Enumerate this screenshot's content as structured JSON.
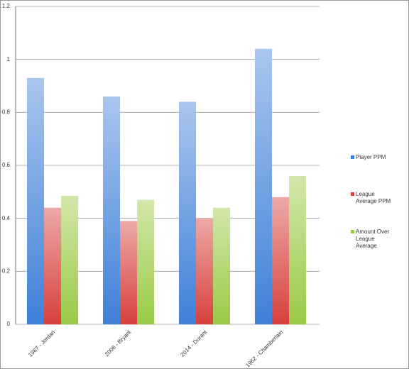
{
  "chart_data": {
    "type": "bar",
    "categories": [
      "1987 - Jordan",
      "2006 - Bryant",
      "2014 - Durant",
      "1962 - Chamberlain"
    ],
    "series": [
      {
        "name": "Player PPM",
        "color": "#3f80d8",
        "values": [
          0.93,
          0.86,
          0.84,
          1.04
        ]
      },
      {
        "name": "League Average PPM",
        "color": "#d7403c",
        "values": [
          0.44,
          0.39,
          0.4,
          0.48
        ]
      },
      {
        "name": "Amount Over League Average",
        "color": "#9ac945",
        "values": [
          0.485,
          0.47,
          0.44,
          0.56
        ]
      }
    ],
    "ylim": [
      0,
      1.2
    ],
    "yticks": [
      0,
      0.2,
      0.4,
      0.6,
      0.8,
      1,
      1.2
    ],
    "grid": true,
    "legend": "right"
  }
}
